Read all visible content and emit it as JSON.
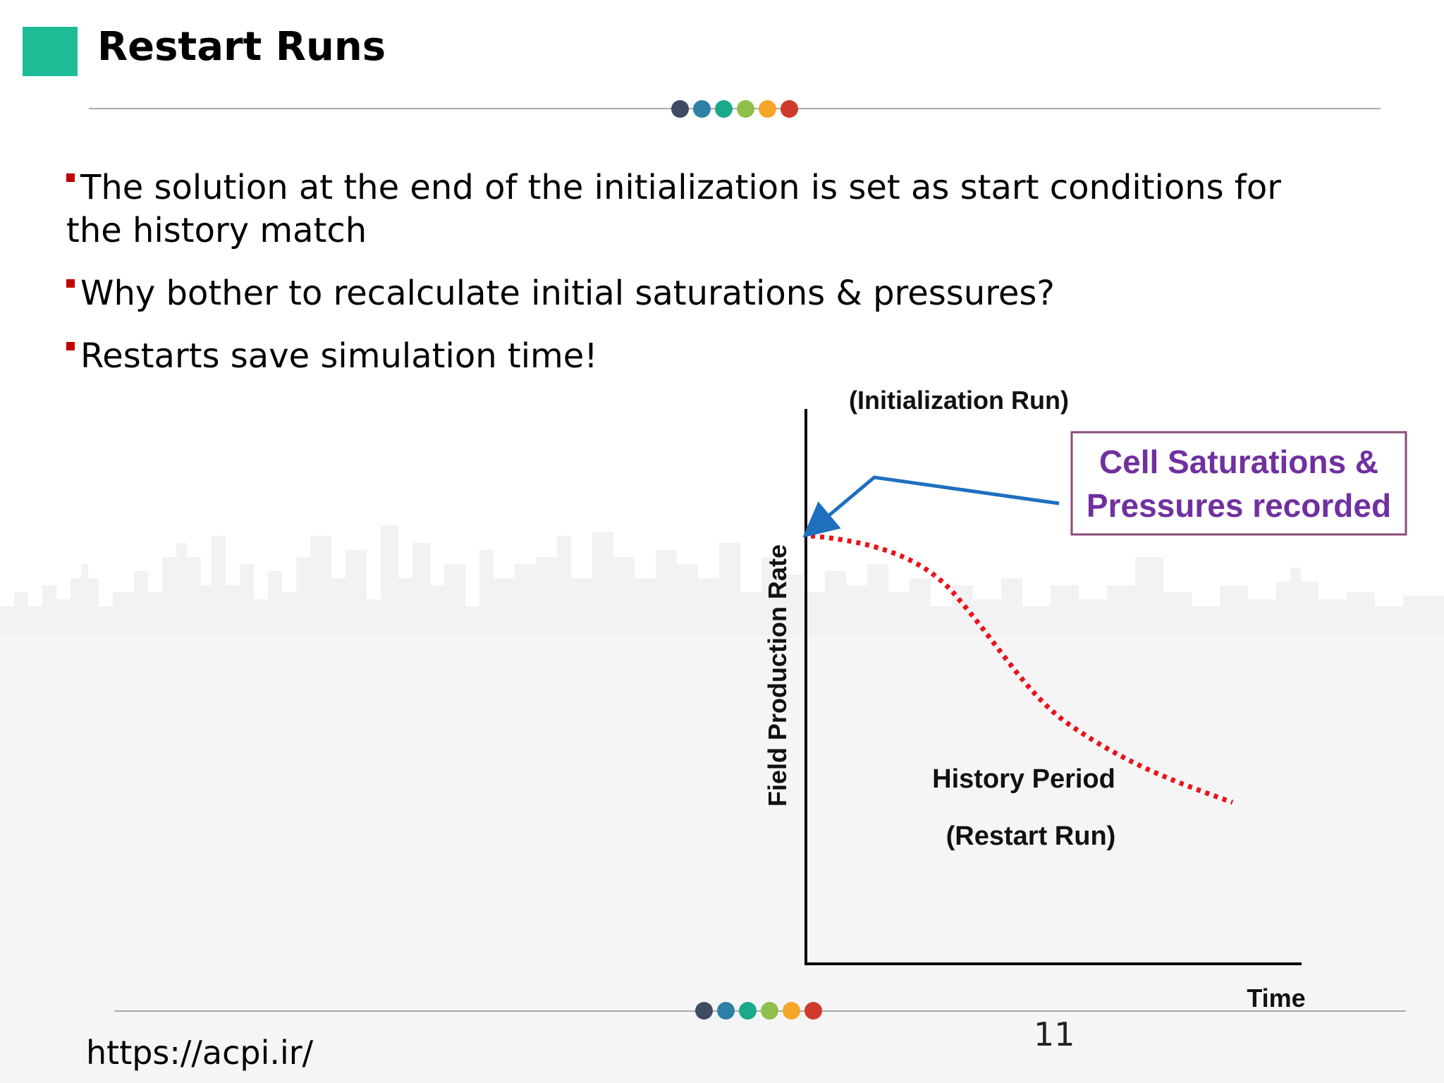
{
  "slide": {
    "title": "Restart Runs",
    "accent_color": "#1ebc96",
    "bullet_color": "#c00000",
    "dot_colors": [
      "#3f4b63",
      "#2c81a4",
      "#1aaa8a",
      "#8fbf4a",
      "#f5a52a",
      "#d03a2a"
    ],
    "bullets": [
      "The solution at the end of the initialization is set as start conditions for the history match",
      "Why bother to recalculate initial saturations & pressures?",
      "Restarts save simulation time!"
    ],
    "footer_url": "https://acpi.ir/",
    "page_number": "11"
  },
  "chart_data": {
    "type": "diagram",
    "ylabel": "Field Production Rate",
    "xlabel": "Time",
    "init_label": "(Initialization Run)",
    "callout_text_line1": "Cell Saturations &",
    "callout_text_line2": "Pressures recorded",
    "history_label_line1": "History Period",
    "history_label_line2": "(Restart Run)",
    "axis_color": "#000000",
    "curve_color": "#e8141a",
    "arrow_color": "#1f6fbf",
    "callout_text_color": "#7030a0",
    "callout_border_color": "#8a4a7a"
  }
}
